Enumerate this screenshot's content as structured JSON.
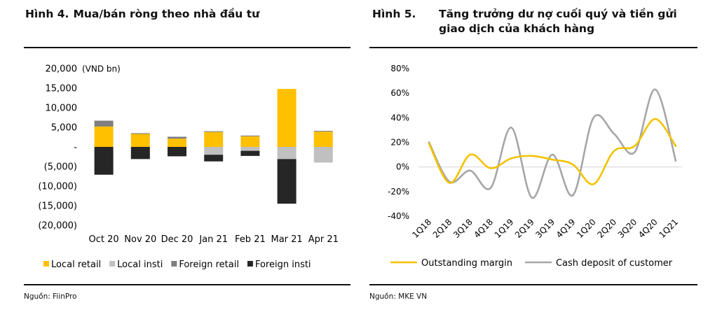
{
  "left": {
    "figure_number": "Hình 4.",
    "figure_title": "Mua/bán ròng theo nhà đầu tư",
    "source": "Nguồn: FiinPro"
  },
  "right": {
    "figure_number": "Hình 5.",
    "figure_title": "Tăng trưởng dư nợ cuối quý và tiền gửi giao dịch của khách hàng",
    "source": "Nguồn: MKE VN"
  },
  "chart_data": [
    {
      "type": "bar",
      "stacked": true,
      "unit_label": "(VND bn)",
      "categories": [
        "Oct 20",
        "Nov 20",
        "Dec 20",
        "Jan 21",
        "Feb 21",
        "Mar 21",
        "Apr 21"
      ],
      "series": [
        {
          "name": "Local retail",
          "color": "#FFC000",
          "values": [
            5200,
            3300,
            2100,
            3800,
            2700,
            14800,
            3900
          ]
        },
        {
          "name": "Local insti",
          "color": "#C0C0C0",
          "values": [
            0,
            0,
            0,
            -2000,
            -1000,
            -3100,
            -4000
          ]
        },
        {
          "name": "Foreign retail",
          "color": "#7F7F7F",
          "values": [
            1500,
            200,
            500,
            200,
            200,
            0,
            200
          ]
        },
        {
          "name": "Foreign insti",
          "color": "#262626",
          "values": [
            -7100,
            -3100,
            -2400,
            -1700,
            -1300,
            -11400,
            0
          ]
        }
      ],
      "yticks": [
        "20,000",
        "15,000",
        "10,000",
        "5,000",
        "-",
        "(5,000)",
        "(10,000)",
        "(15,000)",
        "(20,000)"
      ],
      "ylim": [
        -20000,
        20000
      ],
      "legend_position": "bottom"
    },
    {
      "type": "line",
      "categories": [
        "1Q18",
        "2Q18",
        "3Q18",
        "4Q18",
        "1Q19",
        "2Q19",
        "3Q19",
        "4Q19",
        "1Q20",
        "2Q20",
        "3Q20",
        "4Q20",
        "1Q21"
      ],
      "series": [
        {
          "name": "Outstanding margin",
          "color": "#F2C200",
          "values": [
            19,
            -13,
            10,
            -1,
            7,
            9,
            6,
            2,
            -14,
            13,
            17,
            39,
            17
          ]
        },
        {
          "name": "Cash deposit of customer",
          "color": "#A6A6A6",
          "values": [
            20,
            -12,
            -3,
            -17,
            32,
            -25,
            10,
            -23,
            40,
            27,
            12,
            63,
            5
          ]
        }
      ],
      "yticks": [
        "80%",
        "60%",
        "40%",
        "20%",
        "0%",
        "-20%",
        "-40%"
      ],
      "ylim": [
        -40,
        80
      ],
      "legend_position": "bottom"
    }
  ]
}
